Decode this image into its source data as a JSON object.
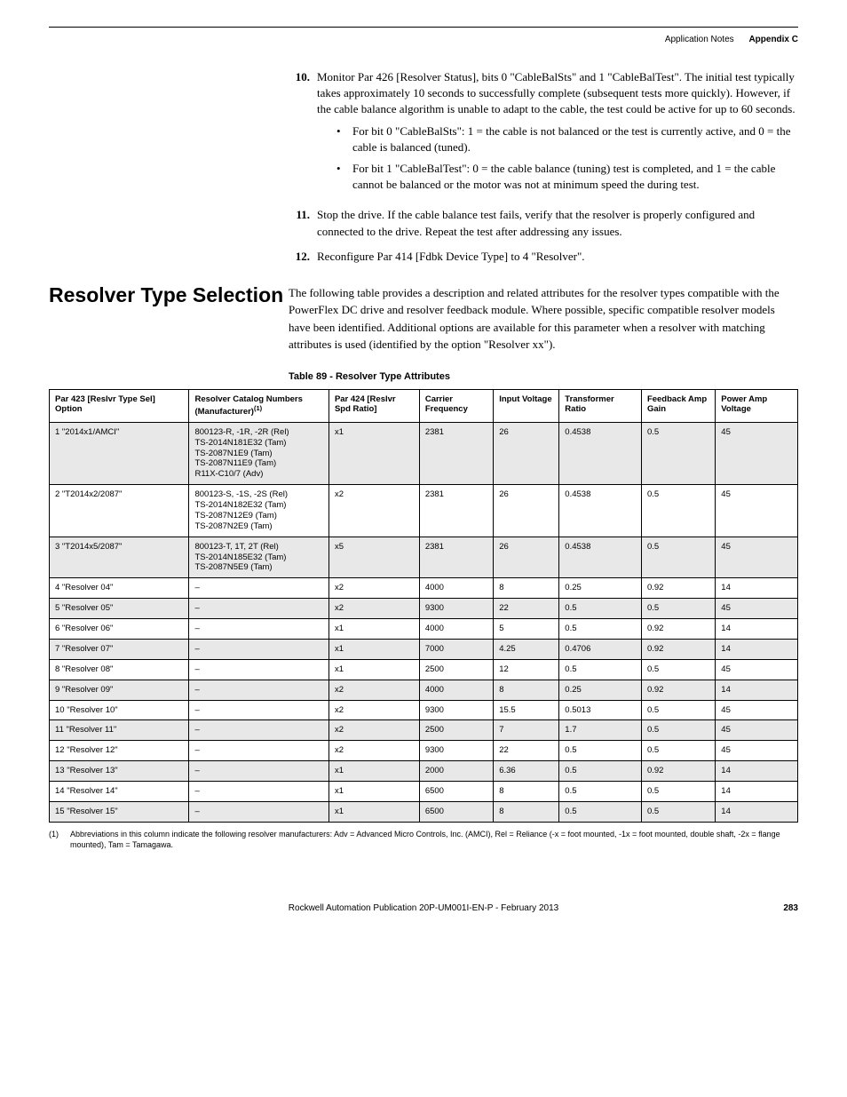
{
  "header": {
    "left": "Application Notes",
    "right": "Appendix C"
  },
  "steps": [
    {
      "num": "10.",
      "text": "Monitor Par 426 [Resolver Status], bits 0 \"CableBalSts\" and 1 \"CableBalTest\". The initial test typically takes approximately 10 seconds to successfully complete (subsequent tests more quickly). However, if the cable balance algorithm is unable to adapt to the cable, the test could be active for up to 60 seconds.",
      "bullets": [
        "For bit 0 \"CableBalSts\": 1 = the cable is not balanced or the test is currently active, and 0 = the cable is balanced (tuned).",
        "For bit 1 \"CableBalTest\": 0 = the cable balance (tuning) test is completed, and 1 = the cable cannot be balanced or the motor was not at minimum speed the during test."
      ]
    },
    {
      "num": "11.",
      "text": "Stop the drive. If the cable balance test fails, verify that the resolver is properly configured and connected to the drive. Repeat the test after addressing any issues.",
      "bullets": []
    },
    {
      "num": "12.",
      "text": "Reconfigure Par 414 [Fdbk Device Type] to 4 \"Resolver\".",
      "bullets": []
    }
  ],
  "section": {
    "heading": "Resolver Type Selection",
    "body": "The following table provides a description and related attributes for the resolver types compatible with the PowerFlex DC drive and resolver feedback module. Where possible, specific compatible resolver models have been identified. Additional options are available for this parameter when a resolver with matching attributes is used (identified by the option \"Resolver xx\")."
  },
  "table_caption": "Table 89 - Resolver Type Attributes",
  "columns": [
    "Par 423 [Reslvr Type Sel] Option",
    "Resolver Catalog Numbers (Manufacturer)",
    "Par 424 [Reslvr Spd Ratio]",
    "Carrier Frequency",
    "Input Voltage",
    "Transformer Ratio",
    "Feedback Amp Gain",
    "Power Amp Voltage"
  ],
  "col_sup": "(1)",
  "rows": [
    [
      "1 \"2014x1/AMCI\"",
      "800123-R, -1R, -2R (Rel)\nTS-2014N181E32 (Tam)\nTS-2087N1E9 (Tam)\nTS-2087N11E9 (Tam)\nR11X-C10/7 (Adv)",
      "x1",
      "2381",
      "26",
      "0.4538",
      "0.5",
      "45"
    ],
    [
      "2 \"T2014x2/2087\"",
      "800123-S, -1S, -2S (Rel)\nTS-2014N182E32 (Tam)\nTS-2087N12E9 (Tam)\nTS-2087N2E9 (Tam)",
      "x2",
      "2381",
      "26",
      "0.4538",
      "0.5",
      "45"
    ],
    [
      "3 \"T2014x5/2087\"",
      "800123-T, 1T, 2T (Rel)\nTS-2014N185E32 (Tam)\nTS-2087N5E9 (Tam)",
      "x5",
      "2381",
      "26",
      "0.4538",
      "0.5",
      "45"
    ],
    [
      "4 \"Resolver 04\"",
      "–",
      "x2",
      "4000",
      "8",
      "0.25",
      "0.92",
      "14"
    ],
    [
      "5 \"Resolver 05\"",
      "–",
      "x2",
      "9300",
      "22",
      "0.5",
      "0.5",
      "45"
    ],
    [
      "6 \"Resolver 06\"",
      "–",
      "x1",
      "4000",
      "5",
      "0.5",
      "0.92",
      "14"
    ],
    [
      "7 \"Resolver 07\"",
      "–",
      "x1",
      "7000",
      "4.25",
      "0.4706",
      "0.92",
      "14"
    ],
    [
      "8 \"Resolver 08\"",
      "–",
      "x1",
      "2500",
      "12",
      "0.5",
      "0.5",
      "45"
    ],
    [
      "9 \"Resolver 09\"",
      "–",
      "x2",
      "4000",
      "8",
      "0.25",
      "0.92",
      "14"
    ],
    [
      "10 \"Resolver 10\"",
      "–",
      "x2",
      "9300",
      "15.5",
      "0.5013",
      "0.5",
      "45"
    ],
    [
      "11 \"Resolver 11\"",
      "–",
      "x2",
      "2500",
      "7",
      "1.7",
      "0.5",
      "45"
    ],
    [
      "12 \"Resolver 12\"",
      "–",
      "x2",
      "9300",
      "22",
      "0.5",
      "0.5",
      "45"
    ],
    [
      "13 \"Resolver 13\"",
      "–",
      "x1",
      "2000",
      "6.36",
      "0.5",
      "0.92",
      "14"
    ],
    [
      "14 \"Resolver 14\"",
      "–",
      "x1",
      "6500",
      "8",
      "0.5",
      "0.5",
      "14"
    ],
    [
      "15 \"Resolver 15\"",
      "–",
      "x1",
      "6500",
      "8",
      "0.5",
      "0.5",
      "14"
    ]
  ],
  "row_shading": [
    true,
    false,
    true,
    false,
    true,
    false,
    true,
    false,
    true,
    false,
    true,
    false,
    true,
    false,
    true
  ],
  "footnote": {
    "label": "(1)",
    "text": "Abbreviations in this column indicate the following resolver manufacturers: Adv = Advanced Micro Controls, Inc. (AMCI), Rel = Reliance (-x = foot mounted, -1x = foot mounted, double shaft, -2x = flange mounted), Tam = Tamagawa."
  },
  "footer": {
    "center": "Rockwell Automation Publication 20P-UM001I-EN-P - February 2013",
    "pagenum": "283"
  }
}
